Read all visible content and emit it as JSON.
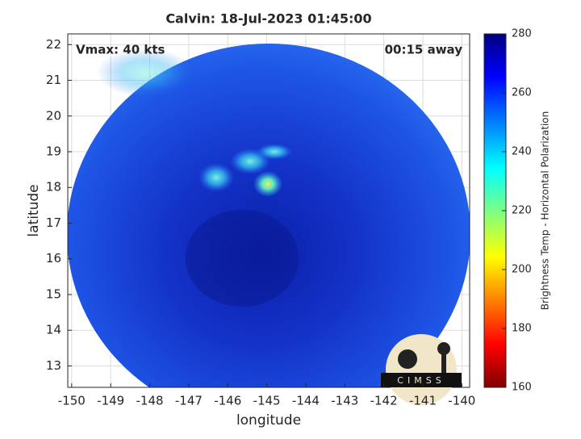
{
  "chart_data": {
    "type": "image",
    "title": "Calvin: 18-Jul-2023 01:45:00",
    "annotations": [
      "Vmax: 40 kts",
      "00:15 away"
    ],
    "xlabel": "longitude",
    "ylabel": "latitude",
    "xlim": [
      -150.1,
      -139.8
    ],
    "xticks": [
      -150,
      -149,
      -148,
      -147,
      -146,
      -145,
      -144,
      -143,
      -142,
      -141,
      -140
    ],
    "ylim": [
      12.4,
      22.3
    ],
    "yticks": [
      13,
      14,
      15,
      16,
      17,
      18,
      19,
      20,
      21,
      22
    ],
    "grid": true,
    "colorbar": {
      "label": "Brightness Temp - Horizontal Polarization",
      "clim": [
        160,
        280
      ],
      "ticks": [
        160,
        180,
        200,
        220,
        240,
        260,
        280
      ]
    },
    "logo": "CIMSS"
  }
}
